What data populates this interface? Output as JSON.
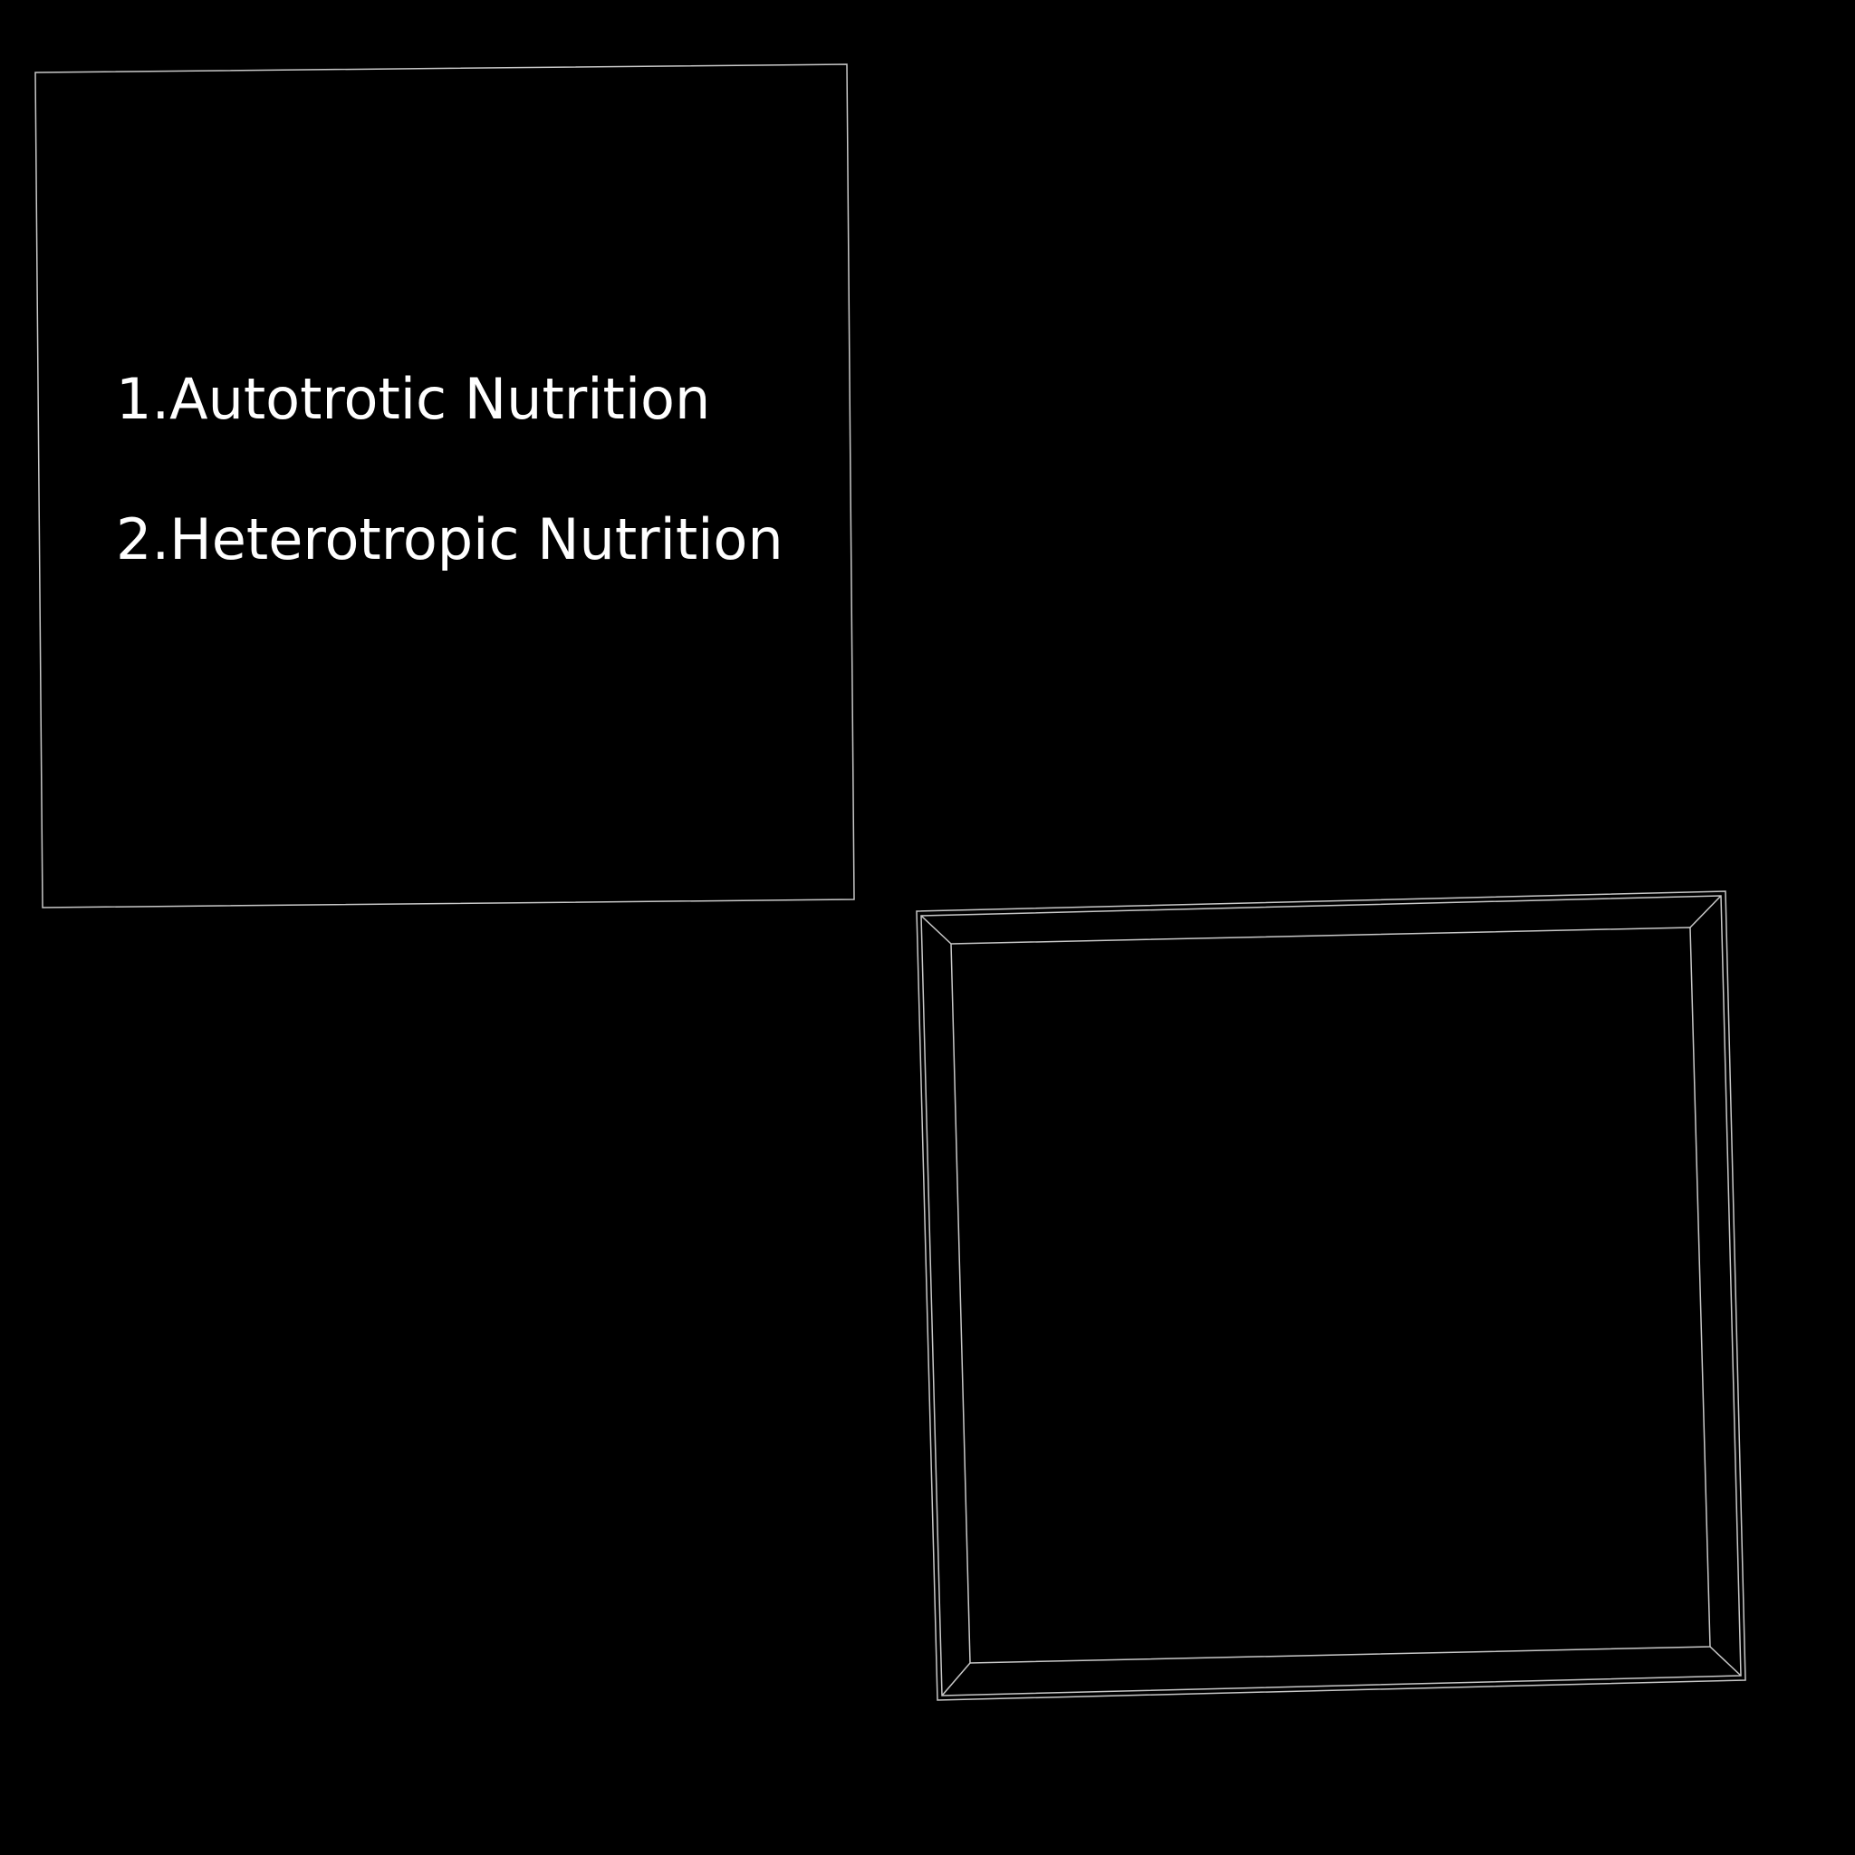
{
  "list": {
    "items": [
      {
        "label": "1.Autotrotic Nutrition"
      },
      {
        "label": "2.Heterotropic Nutrition"
      }
    ]
  },
  "colors": {
    "background": "#000000",
    "text": "#ffffff",
    "frame_stroke": "#c8c8c8"
  }
}
